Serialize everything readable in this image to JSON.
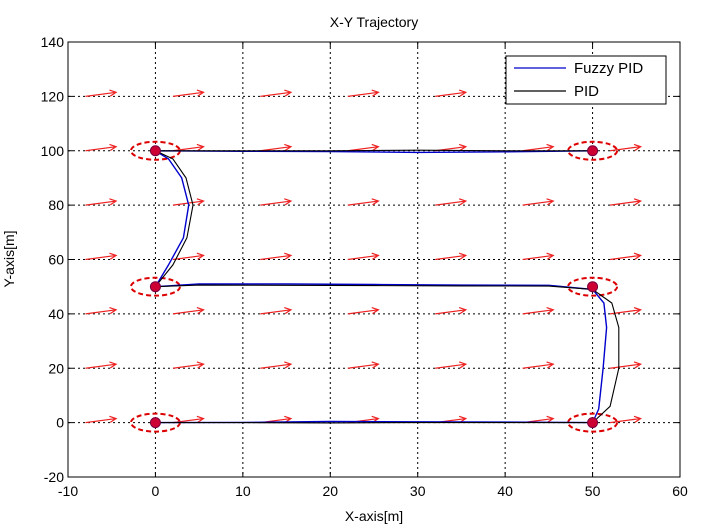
{
  "chart_data": {
    "type": "line",
    "title": "X-Y Trajectory",
    "xlabel": "X-axis[m]",
    "ylabel": "Y-axis[m]",
    "xlim": [
      -10,
      60
    ],
    "ylim": [
      -20,
      140
    ],
    "xticks": [
      -10,
      0,
      10,
      20,
      30,
      40,
      50,
      60
    ],
    "yticks": [
      -20,
      0,
      20,
      40,
      60,
      80,
      100,
      120,
      140
    ],
    "grid": true,
    "grid_style": "dotted",
    "legend_position": "top-right",
    "series": [
      {
        "name": "Fuzzy PID",
        "color": "#0000cc",
        "points": [
          [
            0,
            0
          ],
          [
            10,
            0.1
          ],
          [
            20,
            0.4
          ],
          [
            30,
            0.3
          ],
          [
            40,
            0.2
          ],
          [
            50,
            0
          ],
          [
            50.7,
            5
          ],
          [
            51.2,
            20
          ],
          [
            51.6,
            35
          ],
          [
            51.3,
            44
          ],
          [
            50,
            49
          ],
          [
            45,
            50.5
          ],
          [
            35,
            50.6
          ],
          [
            25,
            50.8
          ],
          [
            15,
            51
          ],
          [
            5,
            51
          ],
          [
            0,
            50
          ],
          [
            1.5,
            58
          ],
          [
            3.2,
            68
          ],
          [
            3.8,
            80
          ],
          [
            3,
            90
          ],
          [
            1.5,
            97
          ],
          [
            0,
            100
          ],
          [
            10,
            99.8
          ],
          [
            20,
            99.7
          ],
          [
            30,
            99.4
          ],
          [
            40,
            99.6
          ],
          [
            50,
            100
          ]
        ]
      },
      {
        "name": "PID",
        "color": "#000000",
        "points": [
          [
            0,
            0
          ],
          [
            10,
            0
          ],
          [
            20,
            -0.1
          ],
          [
            30,
            0
          ],
          [
            40,
            0
          ],
          [
            50,
            0
          ],
          [
            52,
            6
          ],
          [
            53,
            20
          ],
          [
            53,
            35
          ],
          [
            52.2,
            44
          ],
          [
            50,
            49
          ],
          [
            45,
            50.2
          ],
          [
            35,
            50.3
          ],
          [
            25,
            50.4
          ],
          [
            15,
            50.5
          ],
          [
            5,
            50.6
          ],
          [
            0,
            50
          ],
          [
            2,
            58
          ],
          [
            3.6,
            68
          ],
          [
            4.3,
            80
          ],
          [
            3.5,
            90
          ],
          [
            2,
            97
          ],
          [
            0,
            100
          ],
          [
            10,
            100
          ],
          [
            20,
            100
          ],
          [
            30,
            100.2
          ],
          [
            40,
            100
          ],
          [
            50,
            100
          ]
        ]
      }
    ],
    "waypoints": [
      [
        0,
        0
      ],
      [
        50,
        0
      ],
      [
        50,
        50
      ],
      [
        0,
        50
      ],
      [
        0,
        100
      ],
      [
        50,
        100
      ]
    ],
    "waypoint_color": "#cc0033",
    "waypoint_ring_color": "#dd0000",
    "waypoint_ring_radius": [
      2.8,
      3.3
    ],
    "flow_arrows": {
      "color": "#ee2222",
      "x": [
        -8,
        2,
        12,
        22,
        32,
        42,
        52
      ],
      "y": [
        0,
        20,
        40,
        60,
        80,
        100,
        120
      ],
      "dx": 3.5,
      "dy": 1.5
    }
  }
}
